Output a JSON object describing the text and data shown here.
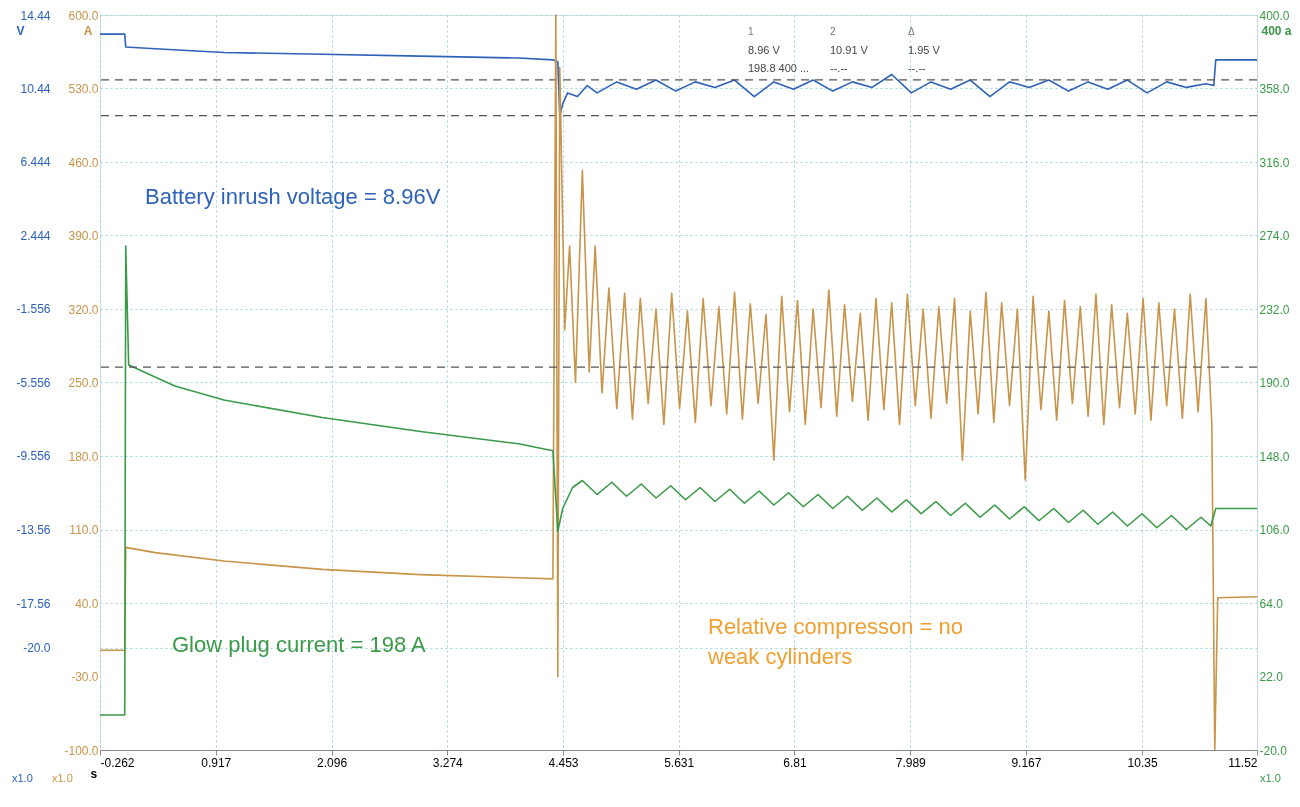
{
  "chart_data": {
    "type": "line",
    "xlabel": "s",
    "ylabel": "V",
    "y3label": "A",
    "y2label": "400 a",
    "xlim": [
      -0.262,
      11.52
    ],
    "xticks": [
      -0.262,
      0.917,
      2.096,
      3.274,
      4.453,
      5.631,
      6.81,
      7.989,
      9.167,
      10.35,
      11.52
    ],
    "ylim": [
      -25.56,
      14.44
    ],
    "yticks": [
      14.44,
      10.44,
      6.444,
      2.444,
      -1.556,
      -5.556,
      -9.556,
      -13.56,
      -17.56,
      {
        "value": -20,
        "label": "-20.0"
      }
    ],
    "y3lim": [
      -100,
      600
    ],
    "y3ticks": [
      {
        "value": 600,
        "label": "600.0"
      },
      {
        "value": 530,
        "label": "530.0"
      },
      {
        "value": 460,
        "label": "460.0"
      },
      {
        "value": 390,
        "label": "390.0"
      },
      {
        "value": 320,
        "label": "320.0"
      },
      {
        "value": 250,
        "label": "250.0"
      },
      {
        "value": 180,
        "label": "180.0"
      },
      {
        "value": 110,
        "label": "110.0"
      },
      {
        "value": 40,
        "label": "40.0"
      },
      {
        "value": -30,
        "label": "-30.0"
      },
      {
        "value": -100,
        "label": "-100.0"
      }
    ],
    "y2lim": [
      -20,
      400
    ],
    "y2ticks": [
      {
        "value": 400,
        "label": "400.0"
      },
      {
        "value": 358,
        "label": "358.0"
      },
      {
        "value": 316,
        "label": "316.0"
      },
      {
        "value": 274,
        "label": "274.0"
      },
      {
        "value": 232,
        "label": "232.0"
      },
      {
        "value": 190,
        "label": "190.0"
      },
      {
        "value": 148,
        "label": "148.0"
      },
      {
        "value": 106,
        "label": "106.0"
      },
      {
        "value": 64,
        "label": "64.0"
      },
      {
        "value": 22,
        "label": "22.0"
      },
      {
        "value": -20,
        "label": "-20.0"
      }
    ],
    "grid": true,
    "marker": "none",
    "line_style": "solid",
    "series": [
      {
        "color": "#c8944a",
        "axis": "y3",
        "x": [
          -0.262,
          -0.01,
          0.0,
          0.3,
          1.0,
          2.0,
          3.0,
          4.0,
          4.35,
          4.38,
          4.4,
          4.42,
          4.47,
          4.52,
          4.58,
          4.65,
          4.72,
          4.78,
          4.85,
          4.92,
          5.0,
          5.08,
          5.16,
          5.24,
          5.32,
          5.4,
          5.48,
          5.56,
          5.64,
          5.72,
          5.8,
          5.88,
          5.96,
          6.04,
          6.12,
          6.2,
          6.28,
          6.36,
          6.44,
          6.52,
          6.6,
          6.68,
          6.76,
          6.84,
          6.92,
          7.0,
          7.08,
          7.16,
          7.24,
          7.32,
          7.4,
          7.48,
          7.56,
          7.64,
          7.72,
          7.8,
          7.88,
          7.96,
          8.04,
          8.12,
          8.2,
          8.28,
          8.36,
          8.44,
          8.52,
          8.6,
          8.68,
          8.76,
          8.84,
          8.92,
          9.0,
          9.08,
          9.16,
          9.24,
          9.32,
          9.4,
          9.48,
          9.56,
          9.64,
          9.72,
          9.8,
          9.88,
          9.96,
          10.04,
          10.12,
          10.2,
          10.28,
          10.36,
          10.44,
          10.52,
          10.6,
          10.68,
          10.76,
          10.84,
          10.92,
          11.0,
          11.06,
          11.09,
          11.12,
          11.52
        ],
        "values": [
          -5,
          -5,
          93,
          88,
          80,
          72,
          67,
          64,
          63,
          600,
          -30,
          550,
          300,
          380,
          250,
          452,
          260,
          380,
          240,
          340,
          225,
          335,
          215,
          330,
          230,
          320,
          210,
          335,
          225,
          318,
          212,
          330,
          228,
          322,
          220,
          336,
          215,
          325,
          230,
          315,
          176,
          332,
          222,
          328,
          210,
          320,
          226,
          338,
          218,
          324,
          232,
          316,
          214,
          330,
          224,
          326,
          210,
          334,
          228,
          320,
          216,
          322,
          230,
          330,
          176,
          318,
          220,
          336,
          212,
          326,
          228,
          320,
          157,
          332,
          224,
          318,
          214,
          328,
          230,
          322,
          218,
          334,
          210,
          324,
          226,
          316,
          220,
          330,
          214,
          326,
          228,
          320,
          216,
          334,
          222,
          330,
          210,
          -100,
          45,
          46
        ]
      },
      {
        "color": "#3a9a48",
        "axis": "y2",
        "x": [
          -0.262,
          -0.01,
          0.0,
          0.03,
          0.5,
          1.0,
          2.0,
          3.0,
          4.0,
          4.35,
          4.4,
          4.45,
          4.55,
          4.65,
          4.8,
          4.95,
          5.1,
          5.25,
          5.4,
          5.55,
          5.7,
          5.85,
          6.0,
          6.15,
          6.3,
          6.45,
          6.6,
          6.75,
          6.9,
          7.05,
          7.2,
          7.35,
          7.5,
          7.65,
          7.8,
          7.95,
          8.1,
          8.25,
          8.4,
          8.55,
          8.7,
          8.85,
          9.0,
          9.15,
          9.3,
          9.45,
          9.6,
          9.75,
          9.9,
          10.05,
          10.2,
          10.35,
          10.5,
          10.65,
          10.8,
          10.95,
          11.05,
          11.1,
          11.52
        ],
        "values": [
          0,
          0,
          268,
          200,
          188,
          180,
          170,
          162,
          155,
          151,
          105,
          118,
          130,
          134,
          126,
          133,
          125,
          132,
          124,
          131,
          123,
          130,
          122,
          129,
          121,
          128,
          120,
          127,
          119,
          126,
          118,
          125,
          117,
          124,
          116,
          123,
          115,
          122,
          114,
          121,
          113,
          120,
          112,
          119,
          111,
          118,
          110,
          117,
          109,
          116,
          108,
          115,
          107,
          114,
          106,
          113,
          108,
          118,
          118
        ]
      },
      {
        "color": "#2e62b8",
        "x": [
          -0.262,
          -0.01,
          0.0,
          0.3,
          1.0,
          2.0,
          3.0,
          4.0,
          4.35,
          4.4,
          4.42,
          4.45,
          4.5,
          4.6,
          4.7,
          4.8,
          5.0,
          5.2,
          5.4,
          5.6,
          5.8,
          6.0,
          6.2,
          6.4,
          6.6,
          6.8,
          7.0,
          7.2,
          7.4,
          7.6,
          7.8,
          8.0,
          8.2,
          8.4,
          8.6,
          8.8,
          9.0,
          9.2,
          9.4,
          9.6,
          9.8,
          10.0,
          10.2,
          10.4,
          10.6,
          10.8,
          11.0,
          11.08,
          11.1,
          11.52
        ],
        "values": [
          13.4,
          13.4,
          12.7,
          12.6,
          12.4,
          12.3,
          12.2,
          12.1,
          12.0,
          11.9,
          8.96,
          9.6,
          10.2,
          10.0,
          10.6,
          10.2,
          10.8,
          10.4,
          10.9,
          10.3,
          10.8,
          10.5,
          10.9,
          10.0,
          10.8,
          10.4,
          10.9,
          10.3,
          10.8,
          10.5,
          11.2,
          10.2,
          10.8,
          10.4,
          10.9,
          10.0,
          10.8,
          10.5,
          10.9,
          10.3,
          10.8,
          10.4,
          10.9,
          10.2,
          10.8,
          10.5,
          10.7,
          10.6,
          12.0,
          12.0
        ]
      }
    ],
    "ref_lines": [
      {
        "axis": "y",
        "value": 10.91,
        "line_style": "dashed",
        "color": "#555555"
      },
      {
        "axis": "y",
        "value": 8.96,
        "line_style": "dashed",
        "color": "#555555"
      },
      {
        "axis": "y2",
        "value": 198.8,
        "line_style": "dashed",
        "color": "#555555"
      }
    ],
    "annotations": [
      "Battery inrush voltage = 8.96V",
      "Glow plug current = 198 A",
      "Relative compresson = no\nweak cylinders",
      "1",
      "2",
      "Δ",
      "8.96 V",
      "10.91 V",
      "1.95 V",
      "198.8 400 ...",
      "--.--",
      "--.--",
      "x1.0",
      "x1.0",
      "x1.0"
    ]
  }
}
